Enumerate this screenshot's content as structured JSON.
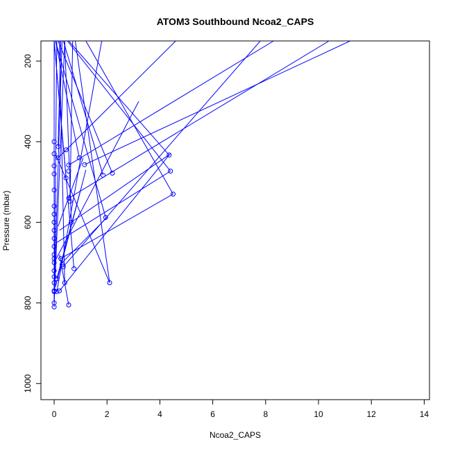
{
  "chart_data": {
    "type": "line",
    "title": "ATOM3 Southbound Ncoa2_CAPS",
    "xlabel": "Ncoa2_CAPS",
    "ylabel": "Pressure (mbar)",
    "xlim": [
      -0.5,
      14.2
    ],
    "ylim": [
      1040,
      150
    ],
    "y_reversed": true,
    "x_ticks": [
      0,
      2,
      4,
      6,
      8,
      10,
      12,
      14
    ],
    "x_tick_labels": [
      "0",
      "2",
      "4",
      "6",
      "8",
      "10",
      "12",
      "14"
    ],
    "y_ticks": [
      200,
      400,
      600,
      800,
      1000
    ],
    "y_tick_labels": [
      "200",
      "400",
      "600",
      "800",
      "1000"
    ],
    "grid": false,
    "legend": "none",
    "series_color": "#0000ff",
    "marker": "open-circle",
    "series": [
      {
        "values": [
          [
            0.0,
            810
          ],
          [
            0.0,
            800
          ],
          [
            0.55,
            805
          ],
          [
            0.0,
            772
          ],
          [
            0.1,
            772
          ],
          [
            0.0,
            770
          ],
          [
            0.2,
            770
          ],
          [
            0.0,
            750
          ],
          [
            0.4,
            750
          ],
          [
            0.1,
            740
          ],
          [
            0.0,
            735
          ],
          [
            0.0,
            720
          ],
          [
            0.75,
            715
          ],
          [
            0.0,
            700
          ],
          [
            0.35,
            710
          ],
          [
            0.0,
            690
          ],
          [
            0.25,
            690
          ],
          [
            0.0,
            680
          ],
          [
            0.0,
            660
          ],
          [
            0.0,
            640
          ],
          [
            0.0,
            620
          ],
          [
            0.0,
            600
          ],
          [
            0.65,
            600
          ],
          [
            0.0,
            580
          ],
          [
            1.95,
            588
          ],
          [
            0.0,
            560
          ],
          [
            0.6,
            548
          ],
          [
            0.55,
            540
          ],
          [
            0.0,
            520
          ],
          [
            4.5,
            530
          ],
          [
            0.45,
            490
          ],
          [
            0.0,
            480
          ],
          [
            1.85,
            483
          ],
          [
            2.2,
            478
          ],
          [
            0.55,
            473
          ],
          [
            4.4,
            473
          ],
          [
            0.0,
            460
          ],
          [
            0.55,
            458
          ],
          [
            1.15,
            457
          ],
          [
            0.95,
            440
          ],
          [
            4.35,
            433
          ],
          [
            0.15,
            440
          ],
          [
            0.0,
            430
          ],
          [
            0.45,
            420
          ],
          [
            0.15,
            412
          ],
          [
            0.0,
            400
          ]
        ]
      }
    ],
    "lines": [
      [
        [
          0.0,
          810
        ],
        [
          0.1,
          150
        ]
      ],
      [
        [
          0.0,
          800
        ],
        [
          0.4,
          150
        ]
      ],
      [
        [
          0.55,
          805
        ],
        [
          0.2,
          680
        ]
      ],
      [
        [
          0.0,
          772
        ],
        [
          0.3,
          150
        ]
      ],
      [
        [
          0.1,
          772
        ],
        [
          1.8,
          150
        ]
      ],
      [
        [
          0.2,
          770
        ],
        [
          4.35,
          433
        ]
      ],
      [
        [
          0.4,
          750
        ],
        [
          0.2,
          150
        ]
      ],
      [
        [
          0.1,
          740
        ],
        [
          1.0,
          520
        ]
      ],
      [
        [
          0.75,
          715
        ],
        [
          0.0,
          150
        ]
      ],
      [
        [
          0.35,
          710
        ],
        [
          7.8,
          150
        ]
      ],
      [
        [
          0.25,
          690
        ],
        [
          4.5,
          530
        ]
      ],
      [
        [
          0.65,
          600
        ],
        [
          0.4,
          150
        ]
      ],
      [
        [
          1.95,
          588
        ],
        [
          0.05,
          150
        ]
      ],
      [
        [
          0.6,
          548
        ],
        [
          0.7,
          150
        ]
      ],
      [
        [
          0.55,
          540
        ],
        [
          10.4,
          150
        ]
      ],
      [
        [
          4.5,
          530
        ],
        [
          1.2,
          150
        ]
      ],
      [
        [
          0.45,
          490
        ],
        [
          0.0,
          150
        ]
      ],
      [
        [
          1.85,
          483
        ],
        [
          0.35,
          150
        ]
      ],
      [
        [
          2.2,
          478
        ],
        [
          0.15,
          150
        ]
      ],
      [
        [
          4.4,
          473
        ],
        [
          0.5,
          150
        ]
      ],
      [
        [
          0.55,
          458
        ],
        [
          8.3,
          150
        ]
      ],
      [
        [
          1.15,
          457
        ],
        [
          11.2,
          150
        ]
      ],
      [
        [
          0.95,
          440
        ],
        [
          0.05,
          150
        ]
      ],
      [
        [
          4.35,
          433
        ],
        [
          0.55,
          150
        ]
      ],
      [
        [
          0.15,
          440
        ],
        [
          4.6,
          150
        ]
      ],
      [
        [
          0.15,
          412
        ],
        [
          0.25,
          150
        ]
      ],
      [
        [
          2.1,
          750
        ],
        [
          0.8,
          150
        ]
      ],
      [
        [
          2.1,
          750
        ],
        [
          0.05,
          430
        ]
      ],
      [
        [
          0.0,
          700
        ],
        [
          3.2,
          300
        ]
      ],
      [
        [
          0.2,
          620
        ],
        [
          4.4,
          430
        ]
      ],
      [
        [
          0.1,
          650
        ],
        [
          4.4,
          473
        ]
      ],
      [
        [
          0.05,
          760
        ],
        [
          1.2,
          470
        ]
      ],
      [
        [
          0.3,
          700
        ],
        [
          2.0,
          588
        ]
      ],
      [
        [
          0.15,
          610
        ],
        [
          1.1,
          440
        ]
      ]
    ],
    "extra_points": [
      [
        2.1,
        750
      ],
      [
        0.3,
        705
      ]
    ]
  }
}
